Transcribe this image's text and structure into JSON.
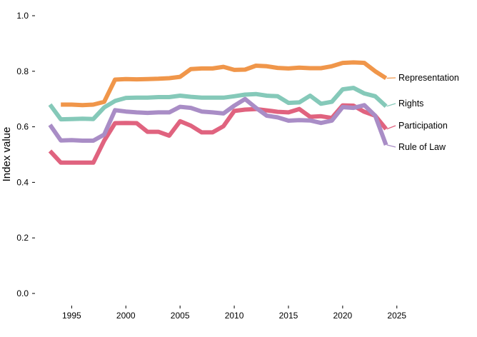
{
  "chart_data": {
    "type": "line",
    "title": "",
    "xlabel": "",
    "ylabel": "Index value",
    "xlim": [
      1993,
      2030
    ],
    "ylim": [
      0,
      1
    ],
    "x_ticks": [
      1995,
      2000,
      2005,
      2010,
      2015,
      2020,
      2025
    ],
    "x_tick_labels": [
      "1995",
      "2000",
      "2005",
      "2010",
      "2015",
      "2020",
      "2025"
    ],
    "y_ticks": [
      0,
      0.2,
      0.4,
      0.6,
      0.8,
      1.0
    ],
    "y_tick_labels": [
      "0.0",
      "0.2",
      "0.4",
      "0.6",
      "0.8",
      "1.0"
    ],
    "grid": false,
    "legend": "direct labels at line ends (right)",
    "x": [
      1993,
      1994,
      1995,
      1996,
      1997,
      1998,
      1999,
      2000,
      2001,
      2002,
      2003,
      2004,
      2005,
      2006,
      2007,
      2008,
      2009,
      2010,
      2011,
      2012,
      2013,
      2014,
      2015,
      2016,
      2017,
      2018,
      2019,
      2020,
      2021,
      2022,
      2023,
      2024
    ],
    "series": [
      {
        "name": "Representation",
        "color": "#F0964A",
        "values": [
          null,
          0.68,
          0.68,
          0.678,
          0.68,
          0.69,
          0.77,
          0.772,
          0.771,
          0.772,
          0.773,
          0.775,
          0.78,
          0.808,
          0.81,
          0.81,
          0.816,
          0.805,
          0.806,
          0.82,
          0.818,
          0.812,
          0.81,
          0.813,
          0.811,
          0.811,
          0.818,
          0.83,
          0.832,
          0.83,
          0.8,
          0.775
        ]
      },
      {
        "name": "Rights",
        "color": "#85C9B9",
        "values": [
          0.68,
          0.627,
          0.628,
          0.629,
          0.628,
          0.67,
          0.693,
          0.704,
          0.705,
          0.705,
          0.707,
          0.707,
          0.712,
          0.708,
          0.705,
          0.705,
          0.705,
          0.71,
          0.716,
          0.718,
          0.712,
          0.71,
          0.686,
          0.688,
          0.712,
          0.683,
          0.69,
          0.735,
          0.74,
          0.72,
          0.71,
          0.674
        ]
      },
      {
        "name": "Participation",
        "color": "#E0637F",
        "values": [
          0.513,
          0.471,
          0.471,
          0.471,
          0.471,
          0.55,
          0.613,
          0.614,
          0.613,
          0.582,
          0.582,
          0.568,
          0.62,
          0.604,
          0.58,
          0.58,
          0.602,
          0.657,
          0.662,
          0.664,
          0.659,
          0.654,
          0.652,
          0.664,
          0.636,
          0.638,
          0.632,
          0.677,
          0.676,
          0.654,
          0.64,
          0.592
        ]
      },
      {
        "name": "Rule of Law",
        "color": "#A98DC6",
        "values": [
          0.607,
          0.551,
          0.552,
          0.55,
          0.55,
          0.572,
          0.66,
          0.655,
          0.652,
          0.65,
          0.652,
          0.652,
          0.672,
          0.668,
          0.655,
          0.652,
          0.648,
          0.676,
          0.7,
          0.668,
          0.64,
          0.634,
          0.622,
          0.624,
          0.623,
          0.614,
          0.622,
          0.671,
          0.668,
          0.678,
          0.64,
          0.535
        ]
      }
    ]
  }
}
